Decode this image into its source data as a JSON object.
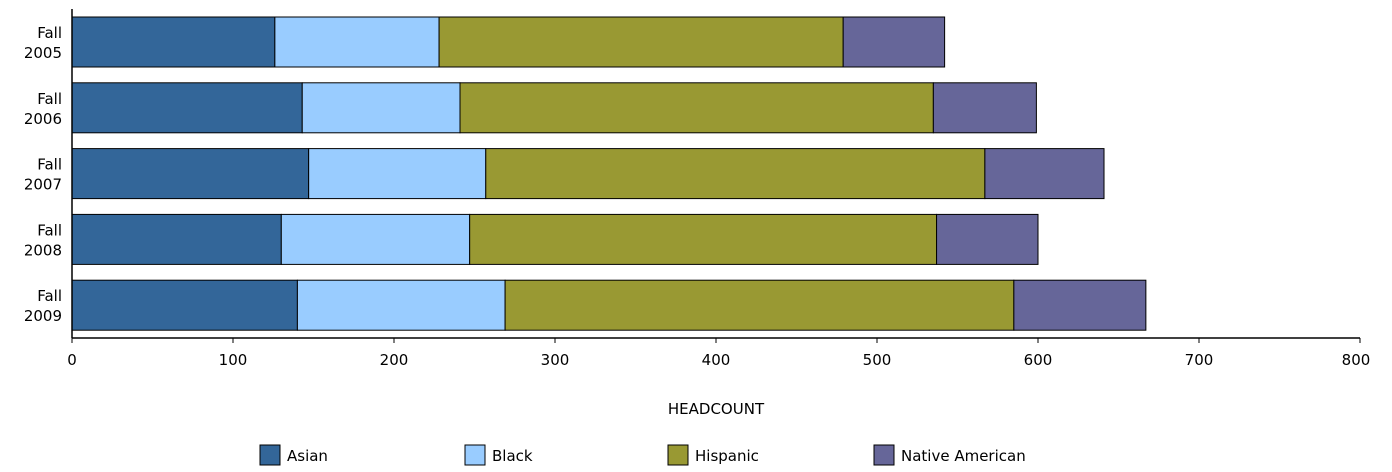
{
  "chart_data": {
    "type": "bar",
    "orientation": "horizontal",
    "stacked": true,
    "categories": [
      [
        "Fall",
        "2005"
      ],
      [
        "Fall",
        "2006"
      ],
      [
        "Fall",
        "2007"
      ],
      [
        "Fall",
        "2008"
      ],
      [
        "Fall",
        "2009"
      ]
    ],
    "series": [
      {
        "name": "Asian",
        "color": "#336699",
        "values": [
          126,
          143,
          147,
          130,
          140
        ]
      },
      {
        "name": "Black",
        "color": "#99ccff",
        "values": [
          102,
          98,
          110,
          117,
          129
        ]
      },
      {
        "name": "Hispanic",
        "color": "#999933",
        "values": [
          251,
          294,
          310,
          290,
          316
        ]
      },
      {
        "name": "Native American",
        "color": "#666699",
        "values": [
          63,
          64,
          74,
          63,
          82
        ]
      }
    ],
    "xlabel": "HEADCOUNT",
    "ylabel": "",
    "xlim": [
      0,
      800
    ],
    "xticks": [
      0,
      100,
      200,
      300,
      400,
      500,
      600,
      700,
      800
    ],
    "grid": false,
    "legend": "bottom"
  }
}
